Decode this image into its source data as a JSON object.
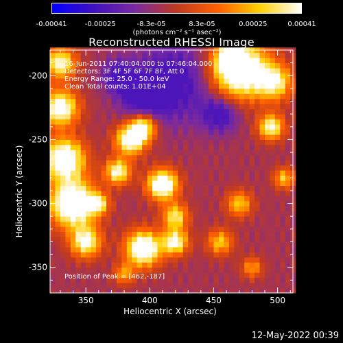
{
  "colorbar": {
    "ticks": [
      "-0.00041",
      "-0.00025",
      "-8.3e-05",
      "8.3e-05",
      "0.00025",
      "0.00041"
    ],
    "tick_values": [
      -0.00041,
      -0.00025,
      -8.3e-05,
      8.3e-05,
      0.00025,
      0.00041
    ],
    "unit": "(photons cm⁻² s⁻¹ asec⁻²)",
    "colors": [
      "#0000ff",
      "#4010c0",
      "#7a2aa0",
      "#c03a20",
      "#ff6000",
      "#ffd000",
      "#ffffff"
    ]
  },
  "annotations": {
    "line1": "16-Jun-2011 07:40:04.000 to 07:46:04.000",
    "line2": "Detectors: 3F 4F 5F 6F 7F 8F, Att 0",
    "line3": "Energy Range: 25.0 - 50.0 keV",
    "line4": "Clean      Total counts: 1.01E+04",
    "peak": "Position of Peak = [462,-187]"
  },
  "timestamp": "12-May-2022 00:39",
  "chart_data": {
    "type": "heatmap",
    "title": "Reconstructed RHESSI Image",
    "xlabel": "Heliocentric X (arcsec)",
    "ylabel": "Heliocentric Y (arcsec)",
    "xlim": [
      322,
      512
    ],
    "ylim": [
      -370,
      -180
    ],
    "xticks": [
      350,
      400,
      450,
      500
    ],
    "yticks": [
      -200,
      -250,
      -300,
      -350
    ],
    "peak": [
      462,
      -187
    ],
    "grid": false
  }
}
